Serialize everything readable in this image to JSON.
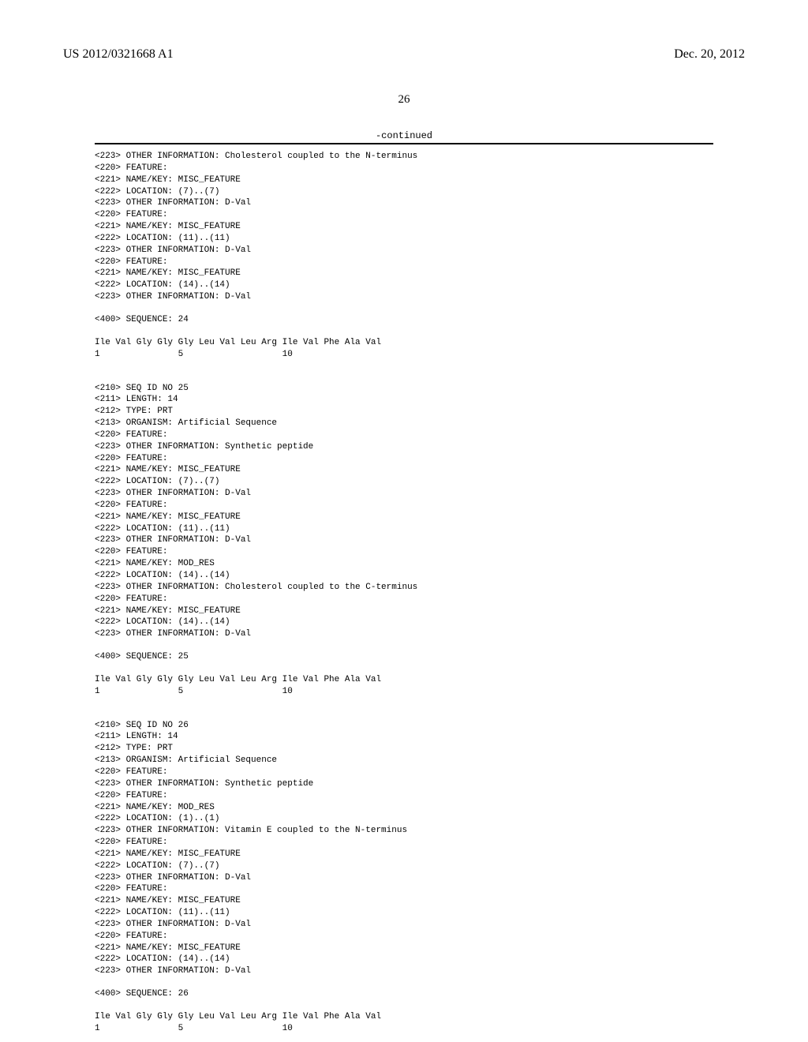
{
  "header": {
    "pub_number": "US 2012/0321668 A1",
    "pub_date": "Dec. 20, 2012"
  },
  "page_number": "26",
  "continued_label": "-continued",
  "sequences": [
    {
      "lines": [
        "<223> OTHER INFORMATION: Cholesterol coupled to the N-terminus",
        "<220> FEATURE:",
        "<221> NAME/KEY: MISC_FEATURE",
        "<222> LOCATION: (7)..(7)",
        "<223> OTHER INFORMATION: D-Val",
        "<220> FEATURE:",
        "<221> NAME/KEY: MISC_FEATURE",
        "<222> LOCATION: (11)..(11)",
        "<223> OTHER INFORMATION: D-Val",
        "<220> FEATURE:",
        "<221> NAME/KEY: MISC_FEATURE",
        "<222> LOCATION: (14)..(14)",
        "<223> OTHER INFORMATION: D-Val",
        "",
        "<400> SEQUENCE: 24",
        "",
        "Ile Val Gly Gly Gly Leu Val Leu Arg Ile Val Phe Ala Val",
        "1               5                   10",
        "",
        "",
        "<210> SEQ ID NO 25",
        "<211> LENGTH: 14",
        "<212> TYPE: PRT",
        "<213> ORGANISM: Artificial Sequence",
        "<220> FEATURE:",
        "<223> OTHER INFORMATION: Synthetic peptide",
        "<220> FEATURE:",
        "<221> NAME/KEY: MISC_FEATURE",
        "<222> LOCATION: (7)..(7)",
        "<223> OTHER INFORMATION: D-Val",
        "<220> FEATURE:",
        "<221> NAME/KEY: MISC_FEATURE",
        "<222> LOCATION: (11)..(11)",
        "<223> OTHER INFORMATION: D-Val",
        "<220> FEATURE:",
        "<221> NAME/KEY: MOD_RES",
        "<222> LOCATION: (14)..(14)",
        "<223> OTHER INFORMATION: Cholesterol coupled to the C-terminus",
        "<220> FEATURE:",
        "<221> NAME/KEY: MISC_FEATURE",
        "<222> LOCATION: (14)..(14)",
        "<223> OTHER INFORMATION: D-Val",
        "",
        "<400> SEQUENCE: 25",
        "",
        "Ile Val Gly Gly Gly Leu Val Leu Arg Ile Val Phe Ala Val",
        "1               5                   10",
        "",
        "",
        "<210> SEQ ID NO 26",
        "<211> LENGTH: 14",
        "<212> TYPE: PRT",
        "<213> ORGANISM: Artificial Sequence",
        "<220> FEATURE:",
        "<223> OTHER INFORMATION: Synthetic peptide",
        "<220> FEATURE:",
        "<221> NAME/KEY: MOD_RES",
        "<222> LOCATION: (1)..(1)",
        "<223> OTHER INFORMATION: Vitamin E coupled to the N-terminus",
        "<220> FEATURE:",
        "<221> NAME/KEY: MISC_FEATURE",
        "<222> LOCATION: (7)..(7)",
        "<223> OTHER INFORMATION: D-Val",
        "<220> FEATURE:",
        "<221> NAME/KEY: MISC_FEATURE",
        "<222> LOCATION: (11)..(11)",
        "<223> OTHER INFORMATION: D-Val",
        "<220> FEATURE:",
        "<221> NAME/KEY: MISC_FEATURE",
        "<222> LOCATION: (14)..(14)",
        "<223> OTHER INFORMATION: D-Val",
        "",
        "<400> SEQUENCE: 26",
        "",
        "Ile Val Gly Gly Gly Leu Val Leu Arg Ile Val Phe Ala Val",
        "1               5                   10"
      ]
    }
  ]
}
